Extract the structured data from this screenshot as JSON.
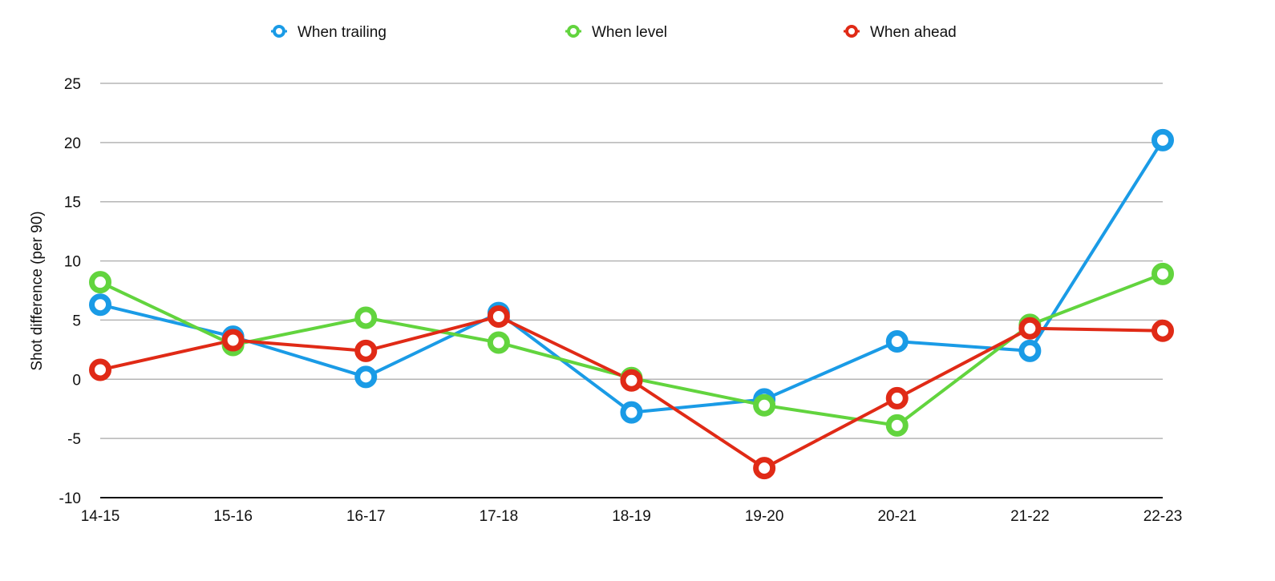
{
  "chart_data": {
    "type": "line",
    "title": "",
    "xlabel": "",
    "ylabel": "Shot difference (per 90)",
    "categories": [
      "14-15",
      "15-16",
      "16-17",
      "17-18",
      "18-19",
      "19-20",
      "20-21",
      "21-22",
      "22-23"
    ],
    "ylim": [
      -10,
      25
    ],
    "yticks": [
      25,
      20,
      15,
      10,
      5,
      0,
      -5,
      -10
    ],
    "grid": true,
    "legend_position": "top",
    "series": [
      {
        "name": "When trailing",
        "color": "#1a9be6",
        "values": [
          6.3,
          3.6,
          0.2,
          5.6,
          -2.8,
          -1.7,
          3.2,
          2.4,
          20.2
        ]
      },
      {
        "name": "When level",
        "color": "#62d43e",
        "values": [
          8.2,
          2.9,
          5.2,
          3.1,
          0.1,
          -2.2,
          -3.9,
          4.6,
          8.9
        ]
      },
      {
        "name": "When ahead",
        "color": "#e02a16",
        "values": [
          0.8,
          3.3,
          2.4,
          5.3,
          -0.1,
          -7.5,
          -1.6,
          4.3,
          4.1
        ]
      }
    ]
  }
}
